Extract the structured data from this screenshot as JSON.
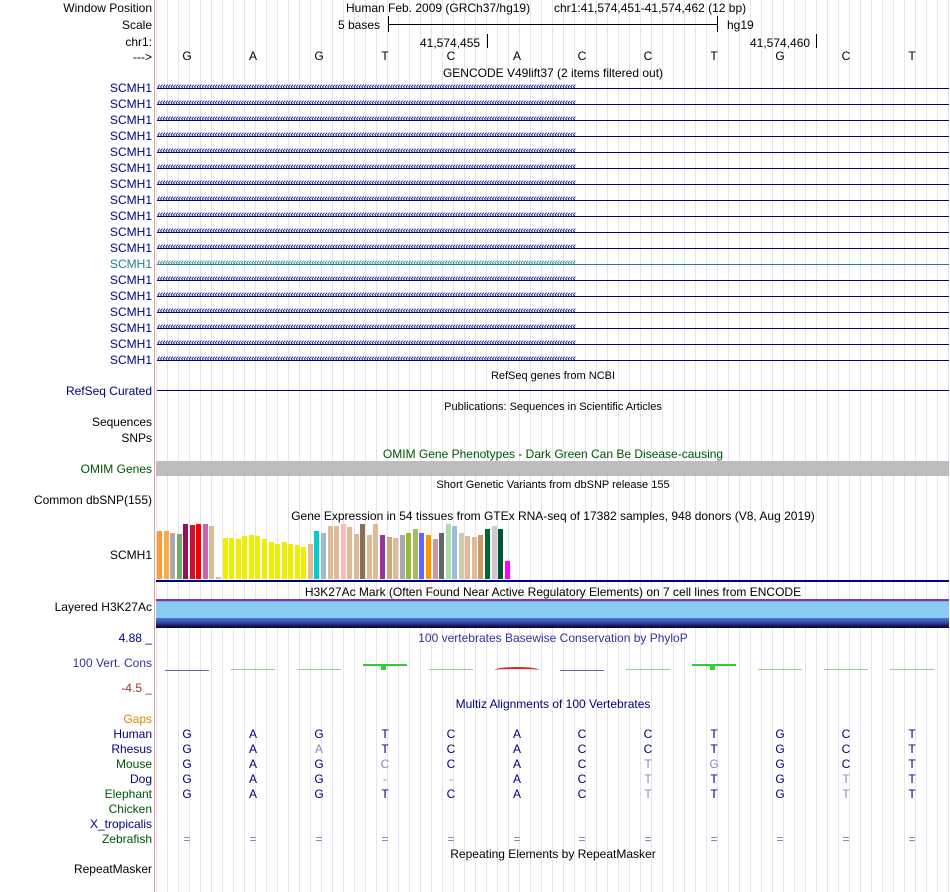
{
  "header": {
    "window_position_label": "Window Position",
    "scale_label": "Scale",
    "chrom_label": "chr1:",
    "strand_label": "--->",
    "assembly_title": "Human Feb. 2009 (GRCh37/hg19)",
    "position_text": "chr1:41,574,451-41,574,462 (12 bp)",
    "scale_text": "5 bases",
    "assembly_short": "hg19",
    "coord_left": "41,574,455",
    "coord_right": "41,574,460"
  },
  "sequence": [
    "G",
    "A",
    "G",
    "T",
    "C",
    "A",
    "C",
    "C",
    "T",
    "G",
    "C",
    "T"
  ],
  "gencode": {
    "title": "GENCODE V49lift37 (2 items filtered out)",
    "genes": [
      "SCMH1",
      "SCMH1",
      "SCMH1",
      "SCMH1",
      "SCMH1",
      "SCMH1",
      "SCMH1",
      "SCMH1",
      "SCMH1",
      "SCMH1",
      "SCMH1",
      "SCMH1",
      "SCMH1",
      "SCMH1",
      "SCMH1",
      "SCMH1",
      "SCMH1",
      "SCMH1"
    ],
    "highlight_index": 11,
    "color": "#000080",
    "highlight_color": "#208090"
  },
  "refseq": {
    "title": "RefSeq genes from NCBI",
    "label": "RefSeq Curated"
  },
  "publications": {
    "title": "Publications: Sequences in Scientific Articles",
    "labels": [
      "Sequences",
      "SNPs"
    ]
  },
  "omim": {
    "title": "OMIM Gene Phenotypes - Dark Green Can Be Disease-causing",
    "label": "OMIM Genes",
    "color": "#005500"
  },
  "dbsnp": {
    "title": "Short Genetic Variants from dbSNP release 155",
    "label": "Common dbSNP(155)"
  },
  "gtex": {
    "title": "Gene Expression in 54 tissues from GTEx RNA-seq of 17382 samples, 948 donors (V8, Aug 2019)",
    "label": "SCMH1",
    "levels": [
      0.88,
      0.88,
      0.84,
      0.82,
      1.0,
      0.98,
      1.0,
      1.0,
      0.96,
      0.04,
      0.74,
      0.74,
      0.72,
      0.78,
      0.8,
      0.78,
      0.72,
      0.68,
      0.64,
      0.68,
      0.64,
      0.62,
      0.58,
      0.64,
      0.88,
      0.84,
      0.96,
      0.96,
      1.0,
      0.94,
      0.82,
      1.0,
      0.8,
      1.0,
      0.8,
      0.76,
      0.74,
      0.8,
      0.84,
      0.9,
      0.84,
      0.8,
      0.72,
      0.84,
      1.0,
      0.96,
      0.84,
      0.78,
      0.76,
      0.8,
      0.9,
      0.96,
      0.9,
      0.32
    ],
    "colors": [
      "#ff9933",
      "#ffaa44",
      "#aaaaaa",
      "#77aa66",
      "#991155",
      "#cc1133",
      "#ff0000",
      "#cc66aa",
      "#ddbb99",
      "#ddbb99",
      "#eeee00",
      "#eeee00",
      "#eeee00",
      "#eeee00",
      "#eeee00",
      "#eeee00",
      "#eeee00",
      "#eeee00",
      "#eeee00",
      "#eeee00",
      "#eeee00",
      "#eeee00",
      "#eeee00",
      "#ddbb99",
      "#00cccc",
      "#99bbcc",
      "#ddbb99",
      "#ddbb99",
      "#ffbbbb",
      "#ddbb99",
      "#ddbb99",
      "#8b6f4e",
      "#ddbb99",
      "#ddbb99",
      "#993399",
      "#ccaa77",
      "#ddbb99",
      "#aaaaaa",
      "#99bb33",
      "#aabb66",
      "#6666ff",
      "#ff9900",
      "#cc99aa",
      "#666666",
      "#aaddaa",
      "#99bbdd",
      "#ccccaa",
      "#ddbb99",
      "#ddbb99",
      "#cc9966",
      "#006633",
      "#cccccc",
      "#005533",
      "#ff00ff"
    ]
  },
  "h3k27ac": {
    "title": "H3K27Ac Mark (Often Found Near Active Regulatory Elements) on 7 cell lines from ENCODE",
    "label": "Layered H3K27Ac"
  },
  "conservation": {
    "title": "100 vertebrates Basewise Conservation by PhyloP",
    "label": "100 Vert. Cons",
    "max_label": "4.88 _",
    "min_label": "-4.5 _",
    "scores": [
      -0.2,
      0.0,
      0.0,
      1.2,
      0.1,
      -1.6,
      -0.1,
      0.0,
      0.6,
      0.0,
      0.1,
      0.1
    ]
  },
  "multiz": {
    "title": "Multiz Alignments of 100 Vertebrates",
    "gaps_label": "Gaps",
    "species": [
      {
        "name": "Human",
        "row": [
          "G",
          "A",
          "G",
          "T",
          "C",
          "A",
          "C",
          "C",
          "T",
          "G",
          "C",
          "T"
        ]
      },
      {
        "name": "Rhesus",
        "row": [
          "G",
          "A",
          "A",
          "T",
          "C",
          "A",
          "C",
          "C",
          "T",
          "G",
          "C",
          "T"
        ]
      },
      {
        "name": "Mouse",
        "row": [
          "G",
          "A",
          "G",
          "C",
          "C",
          "A",
          "C",
          "T",
          "G",
          "G",
          "C",
          "T"
        ]
      },
      {
        "name": "Dog",
        "row": [
          "G",
          "A",
          "G",
          "-",
          "-",
          "A",
          "C",
          "T",
          "T",
          "G",
          "T",
          "T"
        ]
      },
      {
        "name": "Elephant",
        "row": [
          "G",
          "A",
          "G",
          "T",
          "C",
          "A",
          "C",
          "T",
          "T",
          "G",
          "T",
          "T"
        ]
      },
      {
        "name": "Chicken",
        "row": [
          "",
          "",
          "",
          "",
          "",
          "",
          "",
          "",
          "",
          "",
          "",
          ""
        ]
      },
      {
        "name": "X_tropicalis",
        "row": [
          "",
          "",
          "",
          "",
          "",
          "",
          "",
          "",
          "",
          "",
          "",
          ""
        ]
      },
      {
        "name": "Zebrafish",
        "row": [
          "=",
          "=",
          "=",
          "=",
          "=",
          "=",
          "=",
          "=",
          "=",
          "=",
          "=",
          "="
        ]
      }
    ],
    "species_colors": [
      "#000080",
      "#000080",
      "#005500",
      "#000080",
      "#005500",
      "#005500",
      "#000080",
      "#005500"
    ]
  },
  "repeatmasker": {
    "title": "Repeating Elements by RepeatMasker",
    "label": "RepeatMasker"
  }
}
